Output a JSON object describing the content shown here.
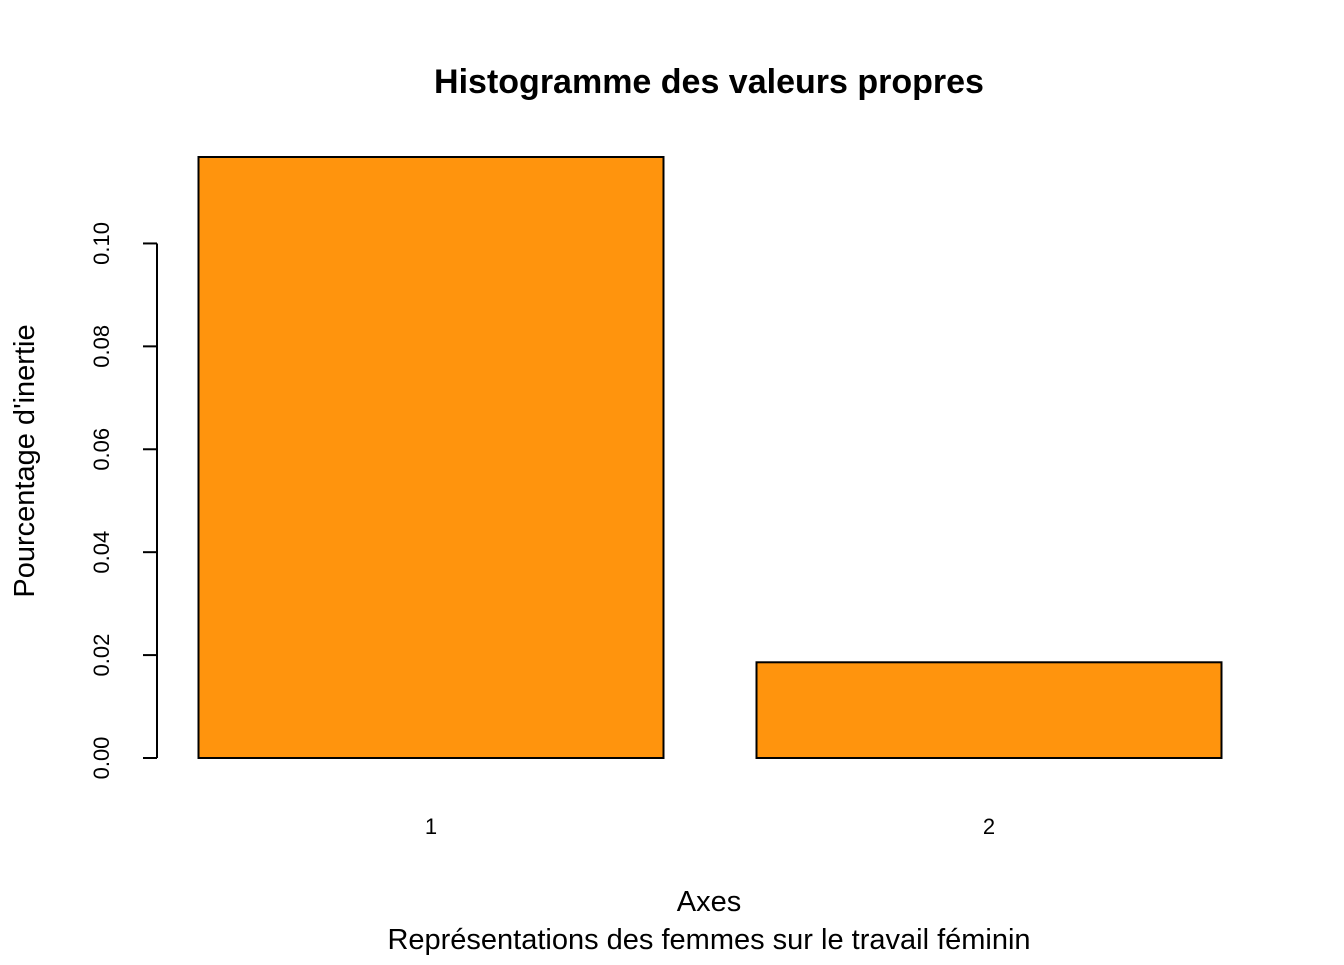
{
  "chart_data": {
    "type": "bar",
    "title": "Histogramme des valeurs propres",
    "xlabel": "Axes",
    "subtitle": "Représentations des femmes sur le travail féminin",
    "ylabel": "Pourcentage d'inertie",
    "categories": [
      "1",
      "2"
    ],
    "values": [
      0.1168,
      0.0186
    ],
    "ylim": [
      0,
      0.1168
    ],
    "y_ticks": [
      "0.00",
      "0.02",
      "0.04",
      "0.06",
      "0.08",
      "0.10"
    ],
    "grid": false,
    "legend": "none",
    "bar_color": "#FF940D",
    "bar_border_color": "#000000"
  }
}
